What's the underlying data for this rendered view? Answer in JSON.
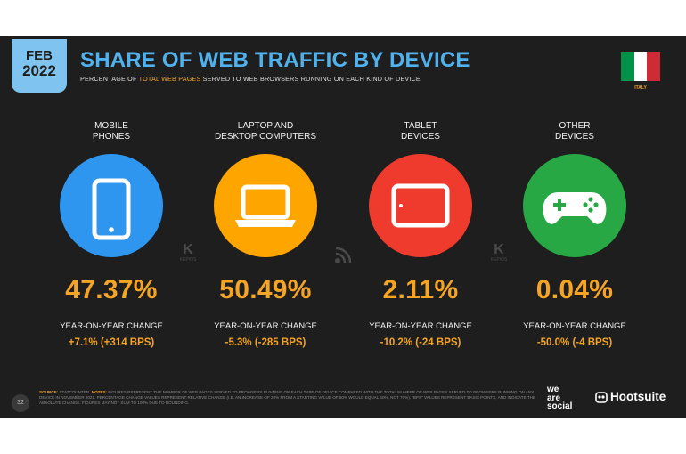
{
  "header": {
    "month": "FEB",
    "year": "2022",
    "title": "SHARE OF WEB TRAFFIC BY DEVICE",
    "subtitle_pre": "PERCENTAGE OF ",
    "subtitle_highlight": "TOTAL WEB PAGES",
    "subtitle_post": " SERVED TO WEB BROWSERS RUNNING ON EACH KIND OF DEVICE",
    "country": "ITALY",
    "flag_colors": [
      "#009246",
      "#ffffff",
      "#ce2b37"
    ]
  },
  "devices": [
    {
      "label_line1": "MOBILE",
      "label_line2": "PHONES",
      "share": "47.37%",
      "yoy_label": "YEAR-ON-YEAR CHANGE",
      "yoy_value": "+7.1% (+314 BPS)",
      "color": "#2e96ef",
      "icon": "mobile-phone-icon"
    },
    {
      "label_line1": "LAPTOP AND",
      "label_line2": "DESKTOP COMPUTERS",
      "share": "50.49%",
      "yoy_label": "YEAR-ON-YEAR CHANGE",
      "yoy_value": "-5.3% (-285 BPS)",
      "color": "#ffa500",
      "icon": "laptop-icon"
    },
    {
      "label_line1": "TABLET",
      "label_line2": "DEVICES",
      "share": "2.11%",
      "yoy_label": "YEAR-ON-YEAR CHANGE",
      "yoy_value": "-10.2% (-24 BPS)",
      "color": "#ee3b2d",
      "icon": "tablet-icon"
    },
    {
      "label_line1": "OTHER",
      "label_line2": "DEVICES",
      "share": "0.04%",
      "yoy_label": "YEAR-ON-YEAR CHANGE",
      "yoy_value": "-50.0% (-4 BPS)",
      "color": "#28a745",
      "icon": "gamepad-icon"
    }
  ],
  "watermarks": {
    "kepios": "KEPIOS"
  },
  "footer": {
    "page_number": "32",
    "source_key": "SOURCE:",
    "source_text": " STATCOUNTER. ",
    "notes_key": "NOTES:",
    "notes_text": " FIGURES REPRESENT THE NUMBER OF WEB PAGES SERVED TO BROWSERS RUNNING ON EACH TYPE OF DEVICE COMPARED WITH THE TOTAL NUMBER OF WEB PAGES SERVED TO BROWSERS RUNNING ON ANY DEVICE IN NOVEMBER 2021. PERCENTAGE CHANGE VALUES REPRESENT RELATIVE CHANGE (I.E. AN INCREASE OF 20% FROM A STARTING VALUE OF 50% WOULD EQUAL 60%, NOT 70%). \"BPS\" VALUES REPRESENT BASIS POINTS, AND INDICATE THE ABSOLUTE CHANGE. FIGURES MAY NOT SUM TO 100% DUE TO ROUNDING.",
    "brand1_l1": "we",
    "brand1_l2": "are",
    "brand1_l3": "social",
    "brand2": "Hootsuite"
  }
}
